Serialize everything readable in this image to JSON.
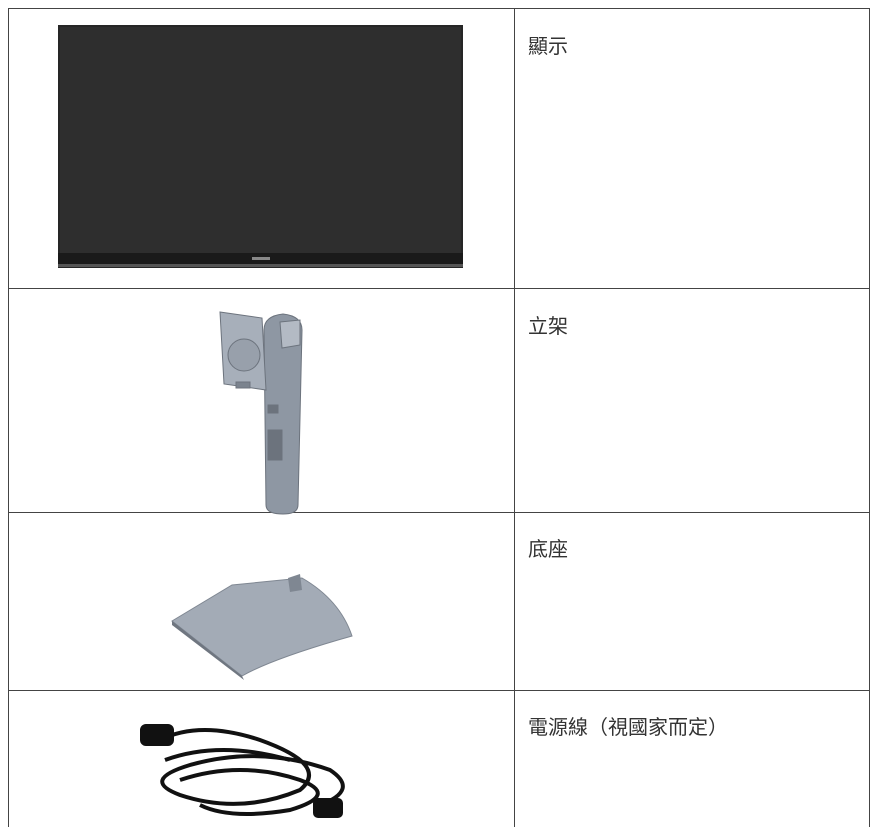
{
  "table": {
    "rows": [
      [
        "顯示"
      ],
      [
        "立架"
      ],
      [
        "底座"
      ],
      [
        "電源線（視國家而定）"
      ]
    ]
  }
}
